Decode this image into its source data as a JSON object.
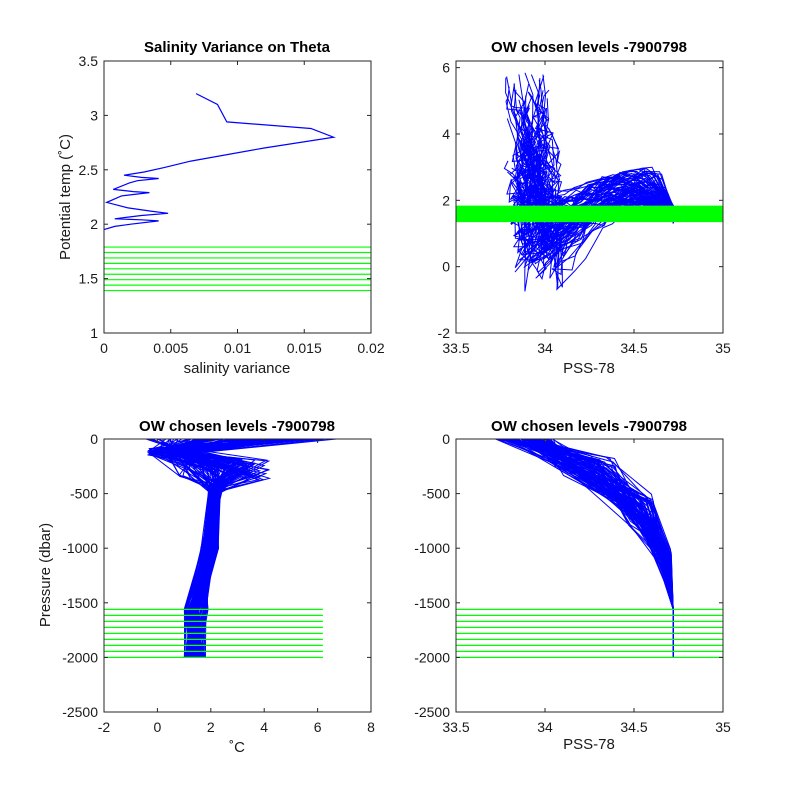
{
  "colors": {
    "profile": "#0000ff",
    "levels": "#00ff00",
    "axis": "#262626"
  },
  "chart_data": [
    {
      "type": "line",
      "title": "Salinity Variance on Theta",
      "xlabel": "salinity variance",
      "ylabel": "Potential temp (˚C)",
      "xlim": [
        0,
        0.02
      ],
      "ylim": [
        1,
        3.5
      ],
      "xticks": [
        "0",
        "0.005",
        "0.01",
        "0.015",
        "0.02"
      ],
      "yticks": [
        "1",
        "1.5",
        "2",
        "2.5",
        "3",
        "3.5"
      ],
      "series": [
        {
          "values": [
            [
              0.0069,
              3.2
            ],
            [
              0.0085,
              3.1
            ],
            [
              0.0092,
              2.94
            ],
            [
              0.0155,
              2.88
            ],
            [
              0.0172,
              2.8
            ],
            [
              0.012,
              2.7
            ],
            [
              0.0065,
              2.58
            ],
            [
              0.0045,
              2.52
            ],
            [
              0.003,
              2.48
            ],
            [
              0.0015,
              2.45
            ],
            [
              0.0028,
              2.43
            ],
            [
              0.0041,
              2.42
            ],
            [
              0.0025,
              2.4
            ],
            [
              0.0019,
              2.38
            ],
            [
              0.0007,
              2.32
            ],
            [
              0.0022,
              2.3
            ],
            [
              0.0034,
              2.29
            ],
            [
              0.0013,
              2.26
            ],
            [
              0.0002,
              2.2
            ],
            [
              0.0018,
              2.15
            ],
            [
              0.0035,
              2.12
            ],
            [
              0.0048,
              2.1
            ],
            [
              0.0028,
              2.08
            ],
            [
              0.0008,
              2.05
            ],
            [
              0.0028,
              2.04
            ],
            [
              0.0041,
              2.03
            ],
            [
              0.002,
              2.0
            ],
            [
              0.0008,
              1.98
            ],
            [
              0.0,
              1.95
            ]
          ]
        }
      ],
      "levels": [
        1.79,
        1.74,
        1.69,
        1.64,
        1.59,
        1.54,
        1.49,
        1.44,
        1.39
      ],
      "levels_xrange": [
        0,
        0.02
      ]
    },
    {
      "type": "line",
      "title": "OW chosen levels -7900798",
      "xlabel": "PSS-78",
      "ylabel": "",
      "xlim": [
        33.5,
        35
      ],
      "ylim": [
        -2,
        6.2
      ],
      "xticks": [
        "33.5",
        "34",
        "34.5",
        "35"
      ],
      "yticks": [
        "-2",
        "0",
        "2",
        "4",
        "6"
      ],
      "profiles": "many theta-salinity profiles (approx.)",
      "levels": [
        1.79,
        1.74,
        1.69,
        1.64,
        1.59,
        1.54,
        1.49,
        1.44,
        1.39
      ],
      "levels_xrange": [
        33.5,
        35
      ]
    },
    {
      "type": "line",
      "title": "OW chosen levels -7900798",
      "xlabel": "˚C",
      "ylabel": "Pressure (dbar)",
      "xlim": [
        -2,
        8
      ],
      "ylim": [
        -2500,
        0
      ],
      "xticks": [
        "-2",
        "0",
        "2",
        "4",
        "6",
        "8"
      ],
      "yticks": [
        "0",
        "-500",
        "-1000",
        "-1500",
        "-2000",
        "-2500"
      ],
      "profiles": "many temperature-pressure profiles (approx.)",
      "levels": [
        -1560,
        -1615,
        -1670,
        -1725,
        -1780,
        -1835,
        -1890,
        -1945,
        -2000
      ],
      "levels_xrange": [
        -2,
        6.2
      ]
    },
    {
      "type": "line",
      "title": "OW chosen levels -7900798",
      "xlabel": "PSS-78",
      "ylabel": "",
      "xlim": [
        33.5,
        35
      ],
      "ylim": [
        -2500,
        0
      ],
      "xticks": [
        "33.5",
        "34",
        "34.5",
        "35"
      ],
      "yticks": [
        "0",
        "-500",
        "-1000",
        "-1500",
        "-2000",
        "-2500"
      ],
      "profiles": "many salinity-pressure profiles (approx.)",
      "levels": [
        -1560,
        -1615,
        -1670,
        -1725,
        -1780,
        -1835,
        -1890,
        -1945,
        -2000
      ],
      "levels_xrange": [
        33.5,
        35
      ]
    }
  ]
}
